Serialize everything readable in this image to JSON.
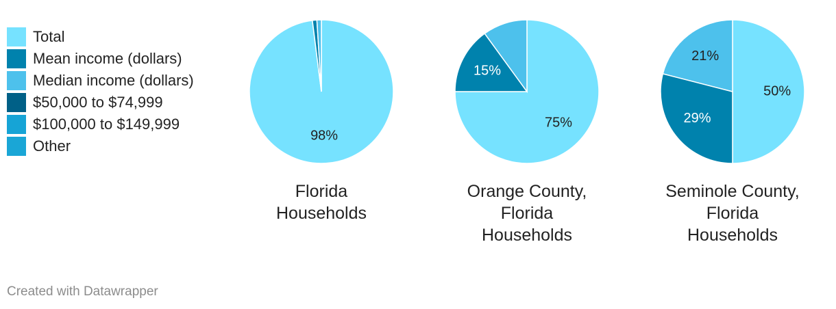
{
  "colors": {
    "Total": "#76e2ff",
    "Mean income (dollars)": "#0082ad",
    "Median income (dollars)": "#4dc1ec",
    "$50,000 to $74,999": "#006087",
    "$100,000 to $149,999": "#16a4d6",
    "Other": "#1aa6d6"
  },
  "legend": [
    {
      "label": "Total",
      "color": "#76e2ff"
    },
    {
      "label": "Mean income (dollars)",
      "color": "#0082ad"
    },
    {
      "label": "Median income (dollars)",
      "color": "#4dc1ec"
    },
    {
      "label": "$50,000 to $74,999",
      "color": "#006087"
    },
    {
      "label": "$100,000 to $149,999",
      "color": "#16a4d6"
    },
    {
      "label": "Other",
      "color": "#1aa6d6"
    }
  ],
  "footer": "Created with Datawrapper",
  "chart_data": {
    "type": "pie",
    "legend_position": "left",
    "charts": [
      {
        "title": "Florida Households",
        "title_lines": [
          "Florida",
          "Households"
        ],
        "slices": [
          {
            "name": "Total",
            "value": 98,
            "label": "98%"
          },
          {
            "name": "Mean income (dollars)",
            "value": 1,
            "label": ""
          },
          {
            "name": "Median income (dollars)",
            "value": 1,
            "label": ""
          }
        ]
      },
      {
        "title": "Orange County, Florida Households",
        "title_lines": [
          "Orange County,",
          "Florida",
          "Households"
        ],
        "slices": [
          {
            "name": "Total",
            "value": 75,
            "label": "75%"
          },
          {
            "name": "Mean income (dollars)",
            "value": 15,
            "label": "15%"
          },
          {
            "name": "Median income (dollars)",
            "value": 10,
            "label": ""
          }
        ]
      },
      {
        "title": "Seminole County, Florida Households",
        "title_lines": [
          "Seminole County,",
          "Florida",
          "Households"
        ],
        "slices": [
          {
            "name": "Total",
            "value": 50,
            "label": "50%"
          },
          {
            "name": "Mean income (dollars)",
            "value": 29,
            "label": "29%"
          },
          {
            "name": "Median income (dollars)",
            "value": 21,
            "label": "21%"
          }
        ]
      }
    ]
  }
}
